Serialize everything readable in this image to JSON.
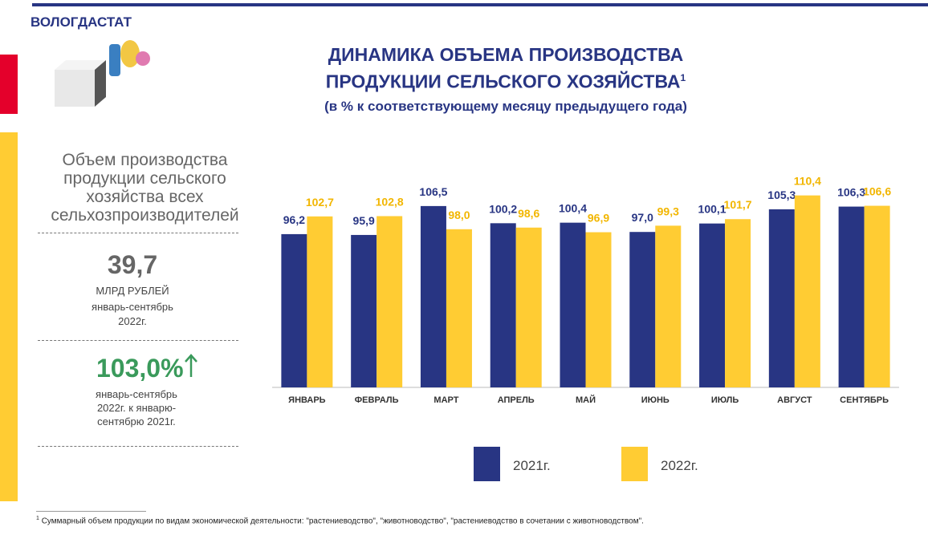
{
  "header": {
    "org": "ВОЛОГДАСТАТ"
  },
  "chart_data": {
    "type": "bar",
    "title_lines": [
      "ДИНАМИКА ОБЪЕМА ПРОИЗВОДСТВА",
      "ПРОДУКЦИИ СЕЛЬСКОГО ХОЗЯЙСТВА"
    ],
    "title_note": "1",
    "subtitle": "(в % к соответствующему месяцу предыдущего года)",
    "categories": [
      "ЯНВАРЬ",
      "ФЕВРАЛЬ",
      "МАРТ",
      "АПРЕЛЬ",
      "МАЙ",
      "ИЮНЬ",
      "ИЮЛЬ",
      "АВГУСТ",
      "СЕНТЯБРЬ"
    ],
    "series": [
      {
        "name": "2021г.",
        "color": "#283583",
        "values": [
          96.2,
          95.9,
          106.5,
          100.2,
          100.4,
          97.0,
          100.1,
          105.3,
          106.3
        ],
        "value_labels": [
          "96,2",
          "95,9",
          "106,5",
          "100,2",
          "100,4",
          "97,0",
          "100,1",
          "105,3",
          "106,3"
        ]
      },
      {
        "name": "2022г.",
        "color": "#ffcc33",
        "values": [
          102.7,
          102.8,
          98.0,
          98.6,
          96.9,
          99.3,
          101.7,
          110.4,
          106.6
        ],
        "value_labels": [
          "102,7",
          "102,8",
          "98,0",
          "98,6",
          "96,9",
          "99,3",
          "101,7",
          "110,4",
          "106,6"
        ]
      }
    ],
    "ylim": [
      40,
      115
    ]
  },
  "side_panel": {
    "heading": "Объем производства продукции сельского хозяйства всех сельхозпроизводителей",
    "total": "39,7",
    "unit": "МЛРД РУБЛЕЙ",
    "period": "январь-сентябрь 2022г.",
    "growth": "103,0%",
    "growth_note": "январь-сентябрь 2022г. к январю-сентябрю 2021г."
  },
  "footnote": {
    "mark": "1",
    "text": "Суммарный объем продукции по видам экономической деятельности: \"растениеводство\", \"животноводство\", \"растениеводство в сочетании с животноводством\"."
  }
}
